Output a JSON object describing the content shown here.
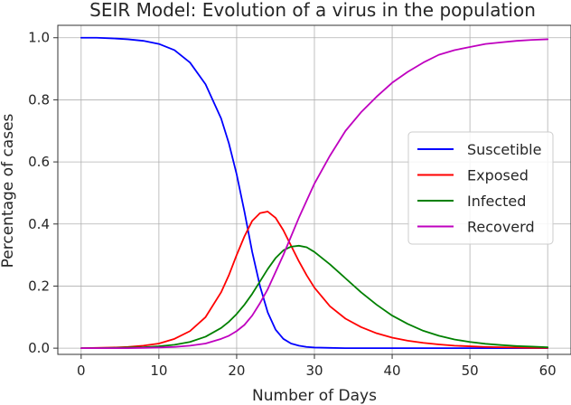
{
  "chart_data": {
    "type": "line",
    "title": "SEIR Model: Evolution of a virus in the population",
    "xlabel": "Number of Days",
    "ylabel": "Percentage of cases",
    "xlim": [
      -3,
      63
    ],
    "ylim": [
      -0.02,
      1.04
    ],
    "xticks": [
      0,
      10,
      20,
      30,
      40,
      50,
      60
    ],
    "yticks": [
      0.0,
      0.2,
      0.4,
      0.6,
      0.8,
      1.0
    ],
    "xtick_labels": [
      "0",
      "10",
      "20",
      "30",
      "40",
      "50",
      "60"
    ],
    "ytick_labels": [
      "0.0",
      "0.2",
      "0.4",
      "0.6",
      "0.8",
      "1.0"
    ],
    "grid": true,
    "legend_position": "center-right",
    "x": [
      0,
      2,
      4,
      6,
      8,
      10,
      12,
      14,
      16,
      18,
      19,
      20,
      21,
      22,
      23,
      24,
      25,
      26,
      27,
      28,
      29,
      30,
      32,
      34,
      36,
      38,
      40,
      42,
      44,
      46,
      48,
      50,
      52,
      54,
      56,
      58,
      60
    ],
    "series": [
      {
        "name": "Suscetible",
        "color": "#0000ff",
        "values": [
          1.0,
          1.0,
          0.998,
          0.995,
          0.99,
          0.98,
          0.96,
          0.92,
          0.85,
          0.74,
          0.66,
          0.56,
          0.44,
          0.31,
          0.2,
          0.115,
          0.06,
          0.03,
          0.015,
          0.008,
          0.004,
          0.002,
          0.001,
          0.0,
          0.0,
          0.0,
          0.0,
          0.0,
          0.0,
          0.0,
          0.0,
          0.0,
          0.0,
          0.0,
          0.0,
          0.0,
          0.0
        ]
      },
      {
        "name": "Exposed",
        "color": "#ff0000",
        "values": [
          0.0,
          0.001,
          0.002,
          0.004,
          0.008,
          0.015,
          0.03,
          0.055,
          0.1,
          0.18,
          0.235,
          0.3,
          0.36,
          0.41,
          0.435,
          0.44,
          0.42,
          0.38,
          0.33,
          0.28,
          0.235,
          0.195,
          0.135,
          0.095,
          0.068,
          0.048,
          0.034,
          0.024,
          0.017,
          0.012,
          0.008,
          0.006,
          0.004,
          0.003,
          0.002,
          0.001,
          0.001
        ]
      },
      {
        "name": "Infected",
        "color": "#008000",
        "values": [
          0.0,
          0.0,
          0.001,
          0.002,
          0.003,
          0.006,
          0.011,
          0.02,
          0.037,
          0.065,
          0.085,
          0.11,
          0.14,
          0.175,
          0.215,
          0.255,
          0.29,
          0.315,
          0.327,
          0.33,
          0.325,
          0.31,
          0.27,
          0.225,
          0.18,
          0.14,
          0.105,
          0.078,
          0.056,
          0.04,
          0.028,
          0.02,
          0.014,
          0.01,
          0.007,
          0.005,
          0.003
        ]
      },
      {
        "name": "Recoverd",
        "color": "#bf00bf",
        "values": [
          0.0,
          0.0,
          0.0,
          0.0,
          0.001,
          0.002,
          0.004,
          0.008,
          0.015,
          0.03,
          0.04,
          0.055,
          0.075,
          0.105,
          0.145,
          0.19,
          0.245,
          0.3,
          0.36,
          0.42,
          0.475,
          0.53,
          0.62,
          0.7,
          0.76,
          0.81,
          0.855,
          0.89,
          0.92,
          0.945,
          0.96,
          0.97,
          0.98,
          0.985,
          0.99,
          0.993,
          0.995
        ]
      }
    ],
    "grid_color": "#b0b0b0",
    "axis_color": "#333333"
  }
}
